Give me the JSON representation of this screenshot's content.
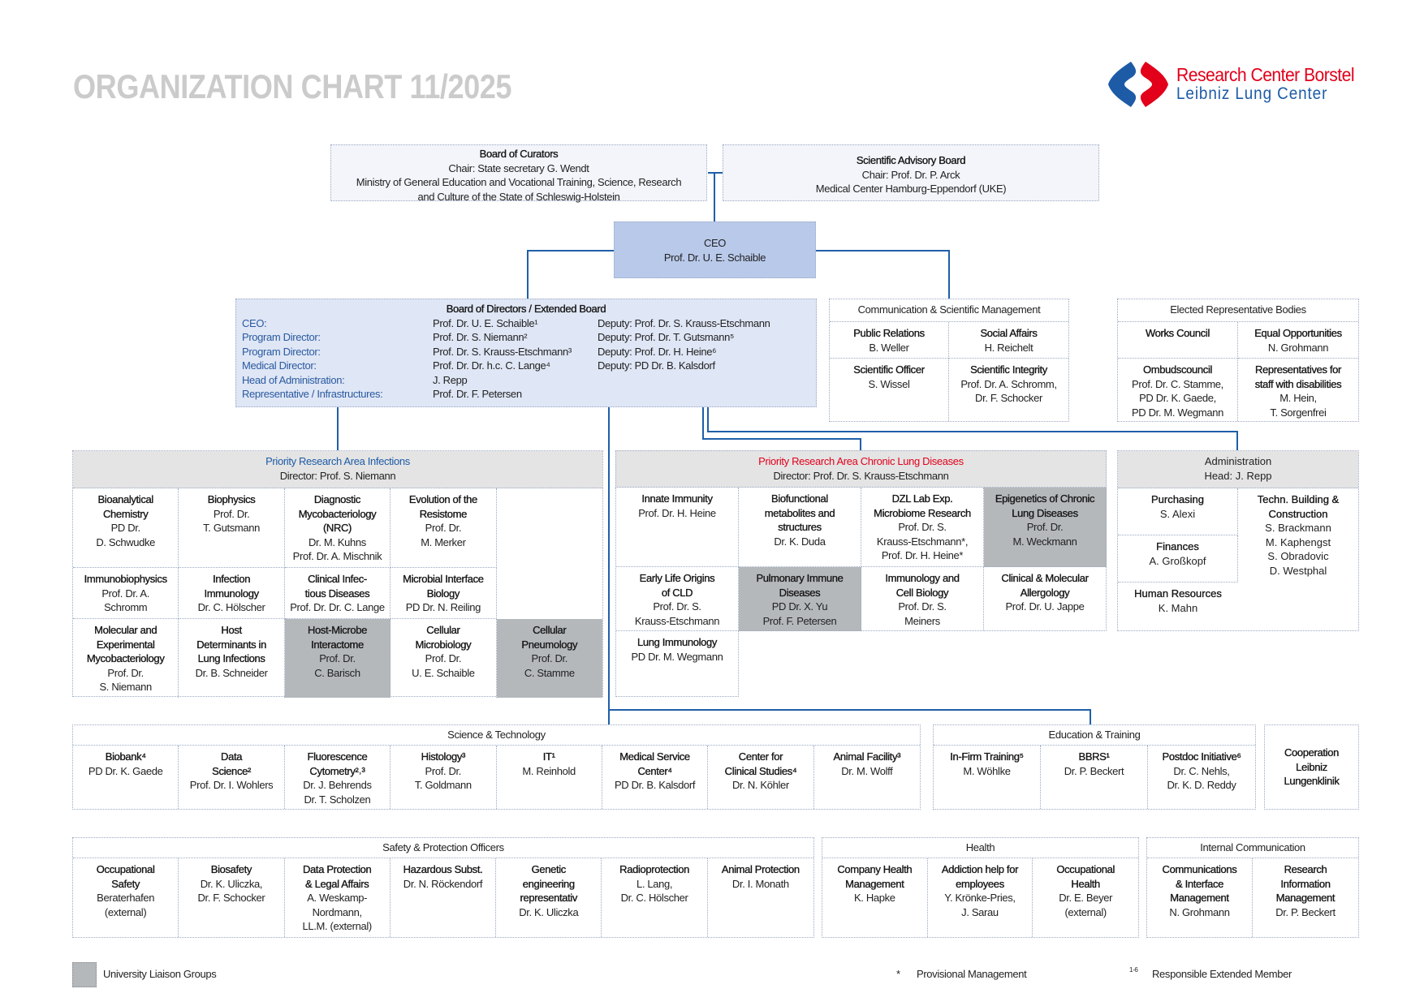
{
  "header": {
    "title": "ORGANIZATION CHART 11/2025",
    "logo": {
      "line1": "Research Center Borstel",
      "line2": "Leibniz Lung Center"
    }
  },
  "colors": {
    "line": "#1f5fa8",
    "ceo_box": "#b9c9ea",
    "board_box": "#dfe6f5",
    "header_gray": "#e4e4e4",
    "university_liaison": "#b5b8bb",
    "label_blue": "#2a5aa0",
    "chronic_red": "#e2001a"
  },
  "board_of_curators": {
    "title": "Board of Curators",
    "lines": [
      "Chair: State secretary G. Wendt",
      "Ministry of General Education and Vocational Training, Science, Research",
      "and Culture of the State of Schleswig-Holstein"
    ]
  },
  "scientific_advisory_board": {
    "title": "Scientific Advisory Board",
    "lines": [
      "Chair: Prof. Dr. P. Arck",
      "Medical Center Hamburg-Eppendorf (UKE)"
    ]
  },
  "ceo": {
    "title": "CEO",
    "name": "Prof. Dr. U. E. Schaible"
  },
  "board_of_directors": {
    "title": "Board of Directors / Extended Board",
    "rows": [
      {
        "label": "CEO:",
        "name": "Prof. Dr. U. E. Schaible¹",
        "deputy": "Deputy: Prof. Dr. S. Krauss-Etschmann"
      },
      {
        "label": "Program Director:",
        "name": "Prof. Dr. S. Niemann²",
        "deputy": "Deputy: Prof. Dr. T. Gutsmann⁵"
      },
      {
        "label": "Program Director:",
        "name": "Prof. Dr. S. Krauss-Etschmann³",
        "deputy": "Deputy: Prof. Dr. H. Heine⁶"
      },
      {
        "label": "Medical Director:",
        "name": "Prof. Dr. Dr. h.c. C. Lange⁴",
        "deputy": "Deputy: PD Dr. B. Kalsdorf"
      },
      {
        "label": "Head of Administration:",
        "name": "J. Repp",
        "deputy": ""
      },
      {
        "label": "Representative / Infrastructures:",
        "name": "Prof. Dr. F. Petersen",
        "deputy": ""
      }
    ]
  },
  "communication_scientific_management": {
    "title": "Communication & Scientific Management",
    "cells": [
      {
        "title": "Public Relations",
        "names": [
          "B. Weller"
        ]
      },
      {
        "title": "Social Affairs",
        "names": [
          "H. Reichelt"
        ]
      },
      {
        "title": "Scientific Officer",
        "names": [
          "S. Wissel"
        ]
      },
      {
        "title": "Scientific Integrity",
        "names": [
          "Prof. Dr. A. Schromm,",
          "Dr. F. Schocker"
        ]
      }
    ]
  },
  "elected_representative_bodies": {
    "title": "Elected Representative Bodies",
    "cells": [
      {
        "title": "Works Council",
        "names": []
      },
      {
        "title": "Equal Opportunities",
        "names": [
          "N. Grohmann"
        ]
      },
      {
        "title": "Ombudscouncil",
        "names": [
          "Prof. Dr. C. Stamme,",
          "PD Dr. K. Gaede,",
          "PD Dr. M. Wegmann"
        ]
      },
      {
        "title": "Representatives for\nstaff with disabilities",
        "names": [
          "M. Hein,",
          "T. Sorgenfrei"
        ]
      }
    ]
  },
  "infections": {
    "title": "Priority Research Area Infections",
    "director": "Director: Prof. S. Niemann",
    "cells": [
      {
        "title": "Bioanalytical\nChemistry",
        "names": [
          "PD Dr.",
          "D. Schwudke"
        ]
      },
      {
        "title": "Biophysics",
        "names": [
          "Prof. Dr.",
          "T. Gutsmann"
        ]
      },
      {
        "title": "Diagnostic\nMycobacteriology\n(NRC)",
        "names": [
          "Dr. M. Kuhns",
          "Prof. Dr. A. Mischnik"
        ]
      },
      {
        "title": "Evolution of the\nResistome",
        "names": [
          "Prof. Dr.",
          "M. Merker"
        ]
      },
      null,
      {
        "title": "Immunobiophysics",
        "names": [
          "Prof. Dr. A.",
          "Schromm"
        ]
      },
      {
        "title": "Infection\nImmunology",
        "names": [
          "Dr. C. Hölscher"
        ]
      },
      {
        "title": "Clinical Infec-\ntious Diseases",
        "names": [
          "Prof. Dr. Dr. C. Lange"
        ]
      },
      {
        "title": "Microbial Interface\nBiology",
        "names": [
          "PD Dr. N. Reiling"
        ]
      },
      null,
      {
        "title": "Molecular and\nExperimental\nMycobacteriology",
        "names": [
          "Prof. Dr.",
          "S. Niemann"
        ]
      },
      {
        "title": "Host\nDeterminants in\nLung Infections",
        "names": [
          "Dr. B. Schneider"
        ]
      },
      {
        "title": "Host-Microbe\nInteractome",
        "names": [
          "Prof. Dr.",
          "C. Barisch"
        ],
        "liaison": true
      },
      {
        "title": "Cellular\nMicrobiology",
        "names": [
          "Prof. Dr.",
          "U. E. Schaible"
        ]
      },
      {
        "title": "Cellular\nPneumology",
        "names": [
          "Prof. Dr.",
          "C. Stamme"
        ],
        "liaison": true
      }
    ]
  },
  "chronic_lung_diseases": {
    "title": "Priority Research Area Chronic Lung Diseases",
    "director": "Director: Prof. Dr. S. Krauss-Etschmann",
    "cells": [
      {
        "title": "Innate Immunity",
        "names": [
          "Prof. Dr. H. Heine"
        ]
      },
      {
        "title": "Biofunctional\nmetabolites and\nstructures",
        "names": [
          "Dr. K. Duda"
        ]
      },
      {
        "title": "DZL Lab Exp.\nMicrobiome Research",
        "names": [
          "Prof. Dr. S.",
          "Krauss-Etschmann*,",
          "Prof. Dr. H. Heine*"
        ]
      },
      {
        "title": "Epigenetics of Chronic\nLung Diseases",
        "names": [
          "Prof. Dr.",
          "M. Weckmann"
        ],
        "liaison": true
      },
      {
        "title": "Early Life Origins\nof CLD",
        "names": [
          "Prof. Dr. S.",
          "Krauss-Etschmann"
        ]
      },
      {
        "title": "Pulmonary Immune\nDiseases",
        "names": [
          "PD Dr. X. Yu",
          "Prof. F. Petersen"
        ],
        "liaison": true
      },
      {
        "title": "Immunology and\nCell Biology",
        "names": [
          "Prof. Dr. S.",
          "Meiners"
        ]
      },
      {
        "title": "Clinical & Molecular\nAllergology",
        "names": [
          "Prof. Dr. U. Jappe"
        ]
      },
      {
        "title": "Lung Immunology",
        "names": [
          "PD Dr. M. Wegmann"
        ]
      }
    ]
  },
  "administration": {
    "title": "Administration",
    "head": "Head: J. Repp",
    "cells": [
      {
        "title": "Purchasing",
        "names": [
          "S. Alexi"
        ]
      },
      {
        "title": "Techn. Building &\nConstruction",
        "names": [
          "S. Brackmann",
          "M. Kaphengst",
          "S. Obradovic",
          "D. Westphal"
        ]
      },
      {
        "title": "Finances",
        "names": [
          "A. Großkopf"
        ]
      },
      {
        "title": "Human Resources",
        "names": [
          "K. Mahn"
        ]
      }
    ]
  },
  "science_technology": {
    "title": "Science & Technology",
    "cells": [
      {
        "title": "Biobank⁴",
        "names": [
          "PD Dr. K. Gaede"
        ]
      },
      {
        "title": "Data\nScience²",
        "names": [
          "Prof. Dr. I. Wohlers"
        ]
      },
      {
        "title": "Fluorescence\nCytometry²˒³",
        "names": [
          "Dr. J. Behrends",
          "Dr. T. Scholzen"
        ]
      },
      {
        "title": "Histology³",
        "names": [
          "Prof. Dr.",
          "T. Goldmann"
        ]
      },
      {
        "title": "IT¹",
        "names": [
          "M. Reinhold"
        ]
      },
      {
        "title": "Medical Service\nCenter⁴",
        "names": [
          "PD Dr. B. Kalsdorf"
        ]
      },
      {
        "title": "Center for\nClinical Studies⁴",
        "names": [
          "Dr. N. Köhler"
        ]
      },
      {
        "title": "Animal Facility³",
        "names": [
          "Dr. M. Wolff"
        ]
      }
    ]
  },
  "education_training": {
    "title": "Education & Training",
    "cells": [
      {
        "title": "In-Firm Training⁵",
        "names": [
          "M. Wöhlke"
        ]
      },
      {
        "title": "BBRS¹",
        "names": [
          "Dr. P. Beckert"
        ]
      },
      {
        "title": "Postdoc Initiative⁶",
        "names": [
          "Dr. C. Nehls,",
          "Dr. K. D. Reddy"
        ]
      }
    ]
  },
  "cooperation": {
    "title": "Cooperation\nLeibniz\nLungenklinik"
  },
  "safety_protection": {
    "title": "Safety & Protection Officers",
    "cells": [
      {
        "title": "Occupational\nSafety",
        "names": [
          "Beraterhafen",
          "(external)"
        ]
      },
      {
        "title": "Biosafety",
        "names": [
          "Dr. K. Uliczka,",
          "Dr. F. Schocker"
        ]
      },
      {
        "title": "Data Protection\n& Legal Affairs",
        "names": [
          "A. Weskamp-",
          "Nordmann,",
          "LL.M. (external)"
        ]
      },
      {
        "title": "Hazardous Subst.",
        "names": [
          "Dr. N. Röckendorf"
        ]
      },
      {
        "title": "Genetic\nengineering\nrepresentativ",
        "names": [
          "Dr. K. Uliczka"
        ]
      },
      {
        "title": "Radioprotection",
        "names": [
          "L. Lang,",
          "Dr. C. Hölscher"
        ]
      },
      {
        "title": "Animal Protection",
        "names": [
          "Dr. I. Monath"
        ]
      }
    ]
  },
  "health": {
    "title": "Health",
    "cells": [
      {
        "title": "Company Health\nManagement",
        "names": [
          "K. Hapke"
        ]
      },
      {
        "title": "Addiction help for\nemployees",
        "names": [
          "Y. Krönke-Pries,",
          "J. Sarau"
        ]
      },
      {
        "title": "Occupational\nHealth",
        "names": [
          "Dr. E. Beyer",
          "(external)"
        ]
      }
    ]
  },
  "internal_communication": {
    "title": "Internal Communication",
    "cells": [
      {
        "title": "Communications\n& Interface\nManagement",
        "names": [
          "N. Grohmann"
        ]
      },
      {
        "title": "Research\nInformation\nManagement",
        "names": [
          "Dr. P. Beckert"
        ]
      }
    ]
  },
  "legend": {
    "liaison": "University Liaison Groups",
    "asterisk_symbol": "*",
    "asterisk": "Provisional Management",
    "footnote_symbol": "1-6",
    "footnote": "Responsible Extended Member"
  }
}
